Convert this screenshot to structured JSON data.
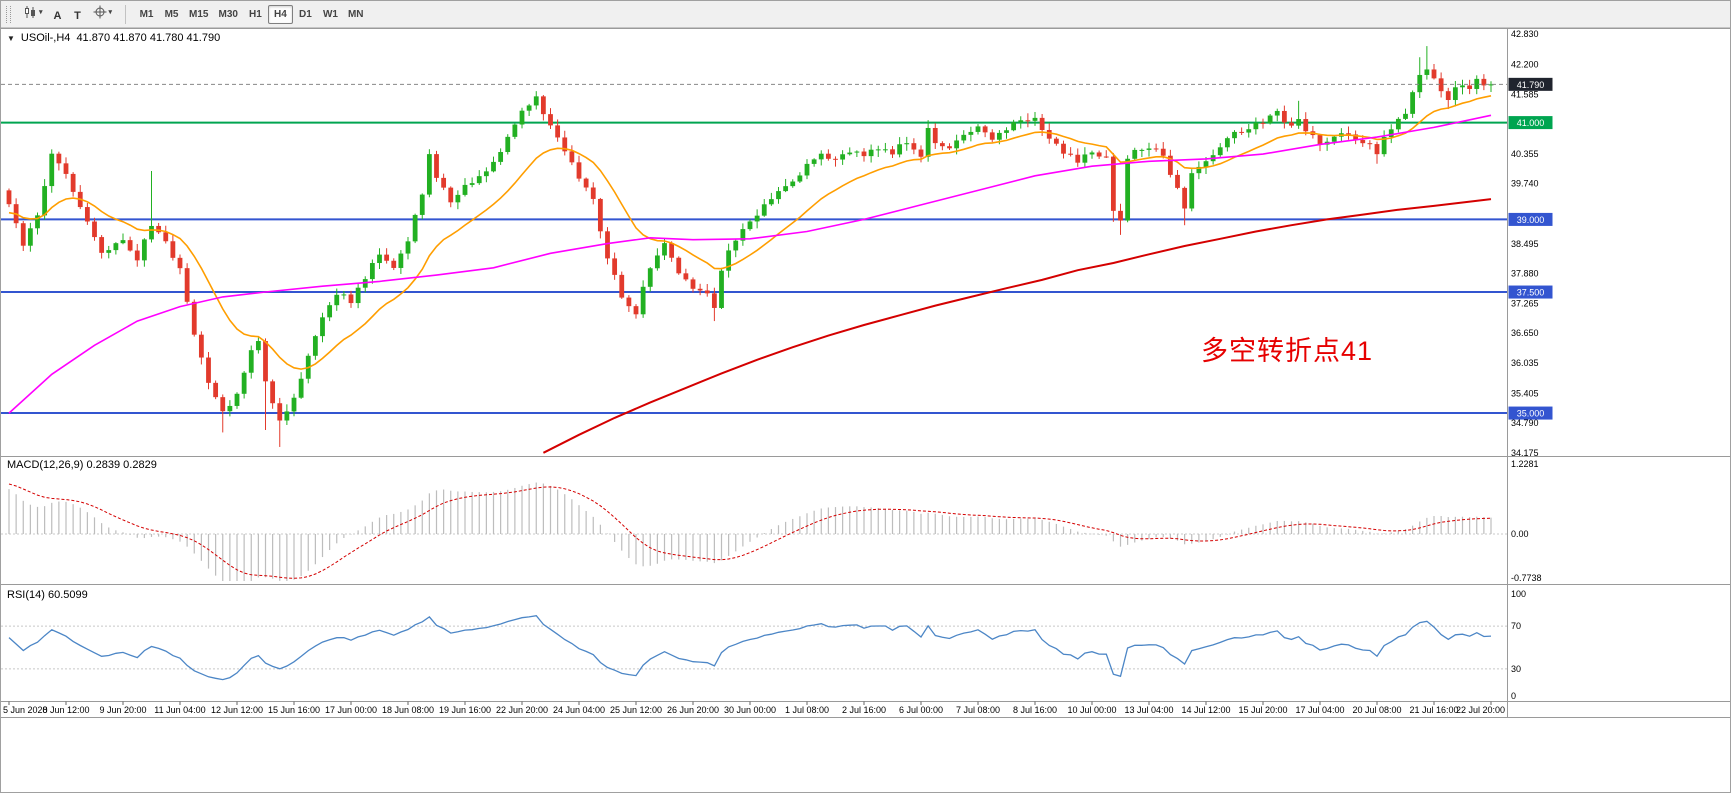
{
  "toolbar": {
    "tools": [
      {
        "name": "chart-menu",
        "icon": "candlestick",
        "caret": true
      },
      {
        "name": "arrow-tool",
        "label": "A"
      },
      {
        "name": "text-tool",
        "label": "T"
      },
      {
        "name": "drawing-menu",
        "icon": "crosshair",
        "caret": true
      }
    ],
    "timeframes": [
      "M1",
      "M5",
      "M15",
      "M30",
      "H1",
      "H4",
      "D1",
      "W1",
      "MN"
    ],
    "active_timeframe": "H4"
  },
  "chart_header": {
    "symbol": "USOil-,H4",
    "ohlc": "41.870 41.870 41.780 41.790"
  },
  "annotation": {
    "text": "多空转折点41",
    "color": "#E60000"
  },
  "price_axis": {
    "tick_labels": [
      "42.830",
      "42.200",
      "41.585",
      "40.355",
      "39.740",
      "38.495",
      "37.880",
      "37.265",
      "36.650",
      "36.035",
      "35.405",
      "34.790",
      "34.175"
    ],
    "badges": [
      {
        "label": "41.790",
        "bg": "#20242E",
        "type": "current-price"
      },
      {
        "label": "41.000",
        "bg": "#00A550",
        "type": "level"
      },
      {
        "label": "39.000",
        "bg": "#3355D0",
        "type": "level"
      },
      {
        "label": "37.500",
        "bg": "#3355D0",
        "type": "level"
      },
      {
        "label": "35.000",
        "bg": "#3355D0",
        "type": "level"
      }
    ]
  },
  "macd_panel": {
    "label": "MACD(12,26,9) 0.2839 0.2829",
    "axis_labels": [
      "1.2281",
      "0.00",
      "-0.7738"
    ]
  },
  "rsi_panel": {
    "label": "RSI(14) 60.5099",
    "axis_labels": [
      "100",
      "70",
      "30",
      "0"
    ]
  },
  "colors": {
    "bull": "#22B022",
    "bear": "#E23A2C",
    "ma_fast": "#FF9E00",
    "ma_medium": "#FF00FF",
    "ma_slow": "#D40000",
    "level_blue": "#3355D0",
    "level_green": "#00A550",
    "macd_histogram": "#BDBDBD",
    "macd_signal": "#D40000",
    "rsi_line": "#4C86C6",
    "current_price_badge": "#20242E"
  },
  "chart_data": {
    "type": "candlestick",
    "symbol": "USOil-",
    "timeframe": "H4",
    "title": "USOil-,H4",
    "ohlc_display": [
      41.87,
      41.87,
      41.78,
      41.79
    ],
    "y_range": [
      34.175,
      42.83
    ],
    "y_ticks": [
      42.83,
      42.2,
      41.585,
      40.355,
      39.74,
      38.495,
      37.88,
      37.265,
      36.65,
      36.035,
      35.405,
      34.79,
      34.175
    ],
    "x_labels": [
      "5 Jun 2020",
      "8 Jun 12:00",
      "9 Jun 20:00",
      "11 Jun 04:00",
      "12 Jun 12:00",
      "15 Jun 16:00",
      "17 Jun 00:00",
      "18 Jun 08:00",
      "19 Jun 16:00",
      "22 Jun 20:00",
      "24 Jun 04:00",
      "25 Jun 12:00",
      "26 Jun 20:00",
      "30 Jun 00:00",
      "1 Jul 08:00",
      "2 Jul 16:00",
      "6 Jul 00:00",
      "7 Jul 08:00",
      "8 Jul 16:00",
      "10 Jul 00:00",
      "13 Jul 04:00",
      "14 Jul 12:00",
      "15 Jul 20:00",
      "17 Jul 04:00",
      "20 Jul 08:00",
      "21 Jul 16:00",
      "22 Jul 20:00"
    ],
    "bars_per_x_label": 8,
    "first_open": 39.6,
    "closes": [
      39.3,
      38.9,
      38.5,
      38.8,
      39.1,
      39.7,
      40.3,
      40.1,
      39.9,
      39.6,
      39.3,
      38.97,
      38.63,
      38.3,
      38.4,
      38.5,
      38.6,
      38.4,
      38.2,
      38.55,
      38.9,
      38.7,
      38.5,
      38.25,
      38.0,
      37.3,
      36.6,
      36.1,
      35.6,
      35.3,
      35.0,
      35.2,
      35.4,
      35.85,
      36.3,
      36.5,
      35.6,
      35.2,
      34.8,
      35.05,
      35.3,
      35.75,
      36.2,
      36.6,
      37.0,
      37.25,
      37.5,
      37.4,
      37.3,
      37.55,
      37.8,
      38.05,
      38.3,
      38.15,
      38.0,
      38.3,
      38.6,
      39.05,
      39.5,
      40.3,
      39.8,
      39.6,
      39.4,
      39.55,
      39.7,
      39.8,
      39.9,
      40.05,
      40.2,
      40.45,
      40.7,
      40.95,
      41.2,
      41.35,
      41.5,
      41.2,
      40.9,
      40.65,
      40.4,
      40.15,
      39.9,
      39.65,
      39.4,
      38.8,
      38.2,
      37.8,
      37.4,
      37.25,
      37.1,
      37.55,
      38.0,
      38.25,
      38.5,
      38.2,
      37.9,
      37.75,
      37.6,
      37.55,
      37.5,
      37.2,
      38.0,
      38.3,
      38.6,
      38.75,
      38.9,
      39.1,
      39.3,
      39.45,
      39.6,
      39.7,
      39.8,
      39.95,
      40.1,
      40.25,
      40.4,
      40.3,
      40.2,
      40.3,
      40.4,
      40.35,
      40.3,
      40.4,
      40.5,
      40.45,
      40.4,
      40.5,
      40.6,
      40.45,
      40.3,
      40.9,
      40.6,
      40.55,
      40.5,
      40.6,
      40.7,
      40.8,
      40.9,
      40.8,
      40.7,
      40.8,
      40.9,
      40.95,
      41.0,
      41.05,
      41.1,
      40.9,
      40.7,
      40.55,
      40.4,
      40.3,
      40.2,
      40.3,
      40.4,
      40.35,
      40.3,
      39.2,
      39.0,
      40.2,
      40.4,
      40.45,
      40.5,
      40.4,
      40.3,
      39.95,
      39.6,
      39.2,
      39.9,
      40.05,
      40.2,
      40.35,
      40.5,
      40.65,
      40.8,
      40.85,
      40.9,
      40.95,
      41.0,
      41.1,
      41.2,
      41.05,
      40.9,
      41.1,
      40.8,
      40.7,
      40.6,
      40.65,
      40.7,
      40.75,
      40.8,
      40.7,
      40.6,
      40.5,
      40.4,
      40.7,
      40.9,
      41.05,
      41.2,
      41.6,
      42.0,
      42.1,
      41.9,
      41.6,
      41.5,
      41.7,
      41.8,
      41.7,
      41.85,
      41.75,
      41.79
    ],
    "wick_overrides": {
      "20": {
        "h": 40.0
      },
      "30": {
        "l": 34.6
      },
      "36": {
        "l": 34.65
      },
      "38": {
        "l": 34.3
      },
      "59": {
        "h": 40.45
      },
      "74": {
        "h": 41.65
      },
      "88": {
        "l": 36.95
      },
      "99": {
        "l": 36.9
      },
      "129": {
        "h": 41.05
      },
      "155": {
        "l": 38.95
      },
      "156": {
        "l": 38.68
      },
      "165": {
        "l": 38.88
      },
      "181": {
        "h": 41.45
      },
      "192": {
        "l": 40.15
      },
      "198": {
        "h": 42.35
      },
      "199": {
        "h": 42.58
      },
      "202": {
        "l": 41.28
      }
    },
    "levels": [
      {
        "price": 41.0,
        "color": "#00A550",
        "label": "41.000"
      },
      {
        "price": 39.0,
        "color": "#3355D0",
        "label": "39.000"
      },
      {
        "price": 37.5,
        "color": "#3355D0",
        "label": "37.500"
      },
      {
        "price": 35.0,
        "color": "#3355D0",
        "label": "35.000"
      }
    ],
    "current_price": 41.79,
    "moving_averages": [
      {
        "name": "fast",
        "color": "#FF9E00",
        "type": "ema",
        "period": 16
      },
      {
        "name": "medium",
        "color": "#FF00FF",
        "type": "anchors",
        "points": [
          [
            0,
            35.0
          ],
          [
            6,
            35.8
          ],
          [
            12,
            36.4
          ],
          [
            18,
            36.9
          ],
          [
            24,
            37.2
          ],
          [
            30,
            37.4
          ],
          [
            36,
            37.5
          ],
          [
            44,
            37.62
          ],
          [
            52,
            37.72
          ],
          [
            60,
            37.85
          ],
          [
            68,
            38.0
          ],
          [
            76,
            38.3
          ],
          [
            84,
            38.5
          ],
          [
            90,
            38.62
          ],
          [
            96,
            38.58
          ],
          [
            104,
            38.6
          ],
          [
            112,
            38.75
          ],
          [
            120,
            39.0
          ],
          [
            128,
            39.3
          ],
          [
            136,
            39.6
          ],
          [
            144,
            39.9
          ],
          [
            152,
            40.1
          ],
          [
            160,
            40.2
          ],
          [
            168,
            40.25
          ],
          [
            176,
            40.35
          ],
          [
            184,
            40.55
          ],
          [
            192,
            40.7
          ],
          [
            200,
            40.9
          ],
          [
            208,
            41.15
          ]
        ]
      },
      {
        "name": "slow",
        "color": "#D40000",
        "type": "anchors",
        "points": [
          [
            75,
            34.18
          ],
          [
            80,
            34.55
          ],
          [
            85,
            34.9
          ],
          [
            90,
            35.22
          ],
          [
            95,
            35.52
          ],
          [
            100,
            35.82
          ],
          [
            105,
            36.1
          ],
          [
            110,
            36.36
          ],
          [
            115,
            36.6
          ],
          [
            120,
            36.82
          ],
          [
            125,
            37.02
          ],
          [
            130,
            37.22
          ],
          [
            135,
            37.4
          ],
          [
            140,
            37.58
          ],
          [
            145,
            37.75
          ],
          [
            150,
            37.95
          ],
          [
            155,
            38.1
          ],
          [
            160,
            38.28
          ],
          [
            165,
            38.45
          ],
          [
            170,
            38.6
          ],
          [
            175,
            38.75
          ],
          [
            180,
            38.88
          ],
          [
            185,
            39.0
          ],
          [
            190,
            39.1
          ],
          [
            195,
            39.2
          ],
          [
            200,
            39.28
          ],
          [
            204,
            39.35
          ],
          [
            208,
            39.42
          ]
        ]
      }
    ],
    "indicators": [
      {
        "name": "MACD",
        "params": [
          12,
          26,
          9
        ],
        "current_values": [
          0.2839,
          0.2829
        ],
        "y_ticks": [
          1.2281,
          0.0,
          -0.7738
        ]
      },
      {
        "name": "RSI",
        "params": [
          14
        ],
        "current_values": [
          60.5099
        ],
        "y_ticks": [
          100,
          70,
          30,
          0
        ],
        "level_lines": [
          70,
          30
        ]
      }
    ]
  }
}
